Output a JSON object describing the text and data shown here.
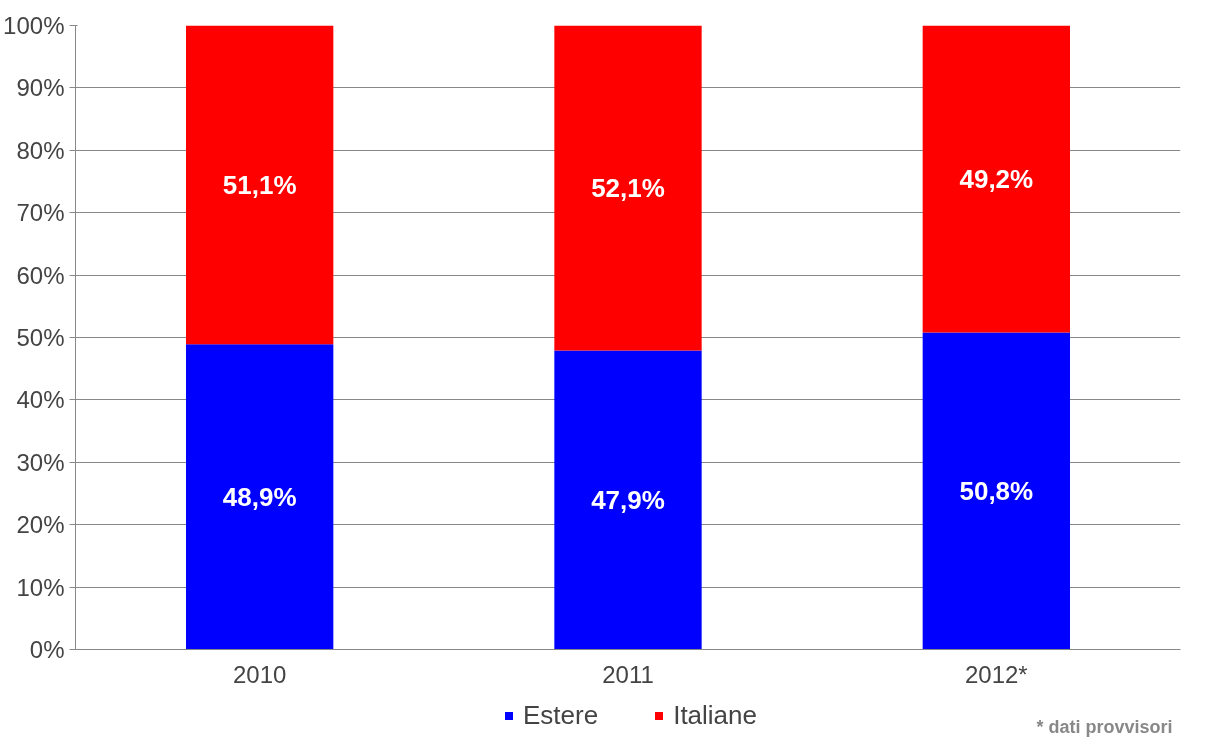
{
  "chart_data": {
    "type": "bar",
    "stacked": true,
    "categories": [
      "2010",
      "2011",
      "2012*"
    ],
    "series": [
      {
        "name": "Estere",
        "color": "#0000ff",
        "values": [
          48.9,
          47.9,
          50.8
        ],
        "value_labels": [
          "48,9%",
          "47,9%",
          "50,8%"
        ]
      },
      {
        "name": "Italiane",
        "color": "#ff0000",
        "values": [
          51.1,
          52.1,
          49.2
        ],
        "value_labels": [
          "51,1%",
          "52,1%",
          "49,2%"
        ]
      }
    ],
    "ylim": [
      0,
      100
    ],
    "yticks": [
      {
        "value": 0,
        "label": "0%"
      },
      {
        "value": 10,
        "label": "10%"
      },
      {
        "value": 20,
        "label": "20%"
      },
      {
        "value": 30,
        "label": "30%"
      },
      {
        "value": 40,
        "label": "40%"
      },
      {
        "value": 50,
        "label": "50%"
      },
      {
        "value": 60,
        "label": "60%"
      },
      {
        "value": 70,
        "label": "70%"
      },
      {
        "value": 80,
        "label": "80%"
      },
      {
        "value": 90,
        "label": "90%"
      },
      {
        "value": 100,
        "label": "100%"
      }
    ],
    "grid": "y",
    "legend": "bottom",
    "annotations": [
      "* dati provvisori"
    ]
  }
}
